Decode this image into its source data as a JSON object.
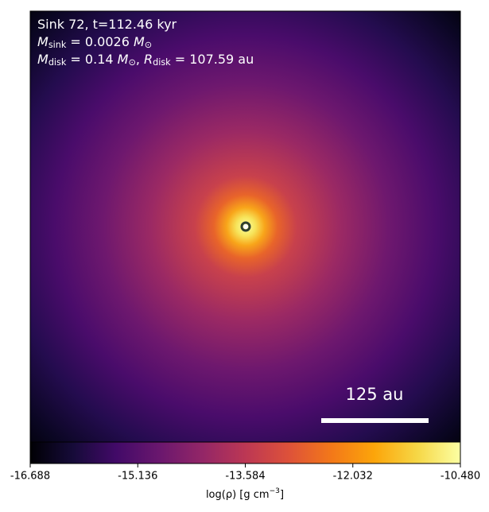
{
  "chart_data": {
    "type": "heatmap",
    "annotation_lines": [
      [
        {
          "t": "Sink 72, t=112.46 kyr"
        }
      ],
      [
        {
          "i": "M"
        },
        {
          "sub": "sink"
        },
        {
          "t": " = 0.0026 "
        },
        {
          "i": "M"
        },
        {
          "sub": "⊙"
        }
      ],
      [
        {
          "i": "M"
        },
        {
          "sub": "disk"
        },
        {
          "t": " = 0.14 "
        },
        {
          "i": "M"
        },
        {
          "sub": "⊙"
        },
        {
          "t": ", "
        },
        {
          "i": "R"
        },
        {
          "sub": "disk"
        },
        {
          "t": " = 107.59 au"
        }
      ]
    ],
    "scale_bar_label": "125 au",
    "colorbar": {
      "label": [
        {
          "t": "log(ρ) [g cm"
        },
        {
          "sup": "−3"
        },
        {
          "t": "]"
        }
      ],
      "lim": [
        -16.688,
        -10.48
      ],
      "ticks": [
        -16.688,
        -15.136,
        -13.584,
        -12.032,
        {
          "value": -10.48,
          "label": "-10.480"
        }
      ]
    }
  }
}
